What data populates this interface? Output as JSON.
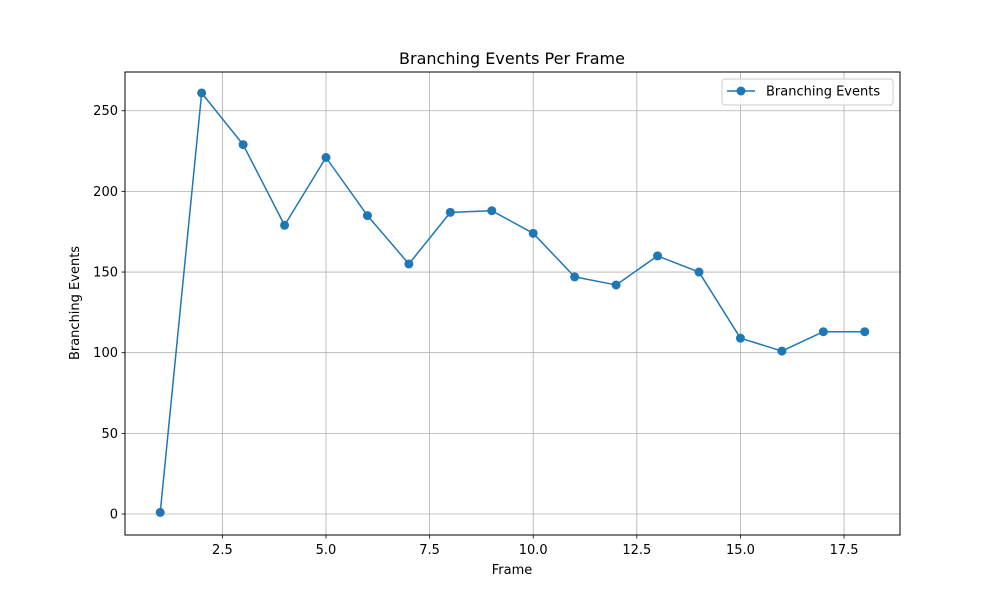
{
  "chart_data": {
    "type": "line",
    "title": "Branching Events Per Frame",
    "xlabel": "Frame",
    "ylabel": "Branching Events",
    "xlim": [
      0.15,
      18.85
    ],
    "ylim": [
      -13,
      274
    ],
    "x_ticks": [
      2.5,
      5.0,
      7.5,
      10.0,
      12.5,
      15.0,
      17.5
    ],
    "x_tick_labels": [
      "2.5",
      "5.0",
      "7.5",
      "10.0",
      "12.5",
      "15.0",
      "17.5"
    ],
    "y_ticks": [
      0,
      50,
      100,
      150,
      200,
      250
    ],
    "y_tick_labels": [
      "0",
      "50",
      "100",
      "150",
      "200",
      "250"
    ],
    "grid": true,
    "legend_position": "top-right",
    "series": [
      {
        "name": "Branching Events",
        "color": "#1f77b4",
        "marker": "circle",
        "x": [
          1,
          2,
          3,
          4,
          5,
          6,
          7,
          8,
          9,
          10,
          11,
          12,
          13,
          14,
          15,
          16,
          17,
          18
        ],
        "y": [
          1,
          261,
          229,
          179,
          221,
          185,
          155,
          187,
          188,
          174,
          147,
          142,
          160,
          150,
          109,
          101,
          113,
          113
        ]
      }
    ]
  }
}
